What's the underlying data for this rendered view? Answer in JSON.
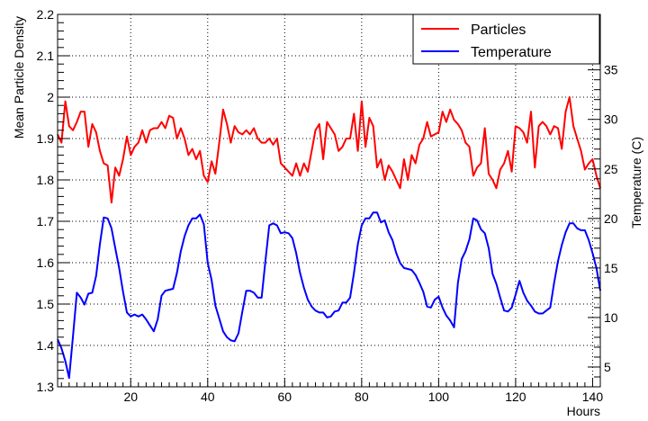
{
  "chart_data": {
    "type": "line",
    "xlabel": "Hours",
    "ylabel": "Mean Particle Density",
    "y2label": "Temperature (C)",
    "xlim": [
      1,
      142
    ],
    "ylim": [
      1.3,
      2.2
    ],
    "y2lim": [
      3.0,
      40.6
    ],
    "x_ticks": [
      20,
      40,
      60,
      80,
      100,
      120,
      140
    ],
    "y_ticks": [
      "1.3",
      "1.4",
      "1.5",
      "1.6",
      "1.7",
      "1.8",
      "1.9",
      "2",
      "2.1",
      "2.2"
    ],
    "y2_ticks": [
      5,
      10,
      15,
      20,
      25,
      30,
      35
    ],
    "grid": true,
    "legend_position": "top-right",
    "series": [
      {
        "name": "Particles",
        "color": "#ff0000",
        "axis": "left",
        "x": [
          1,
          2,
          3,
          4,
          5,
          6,
          7,
          8,
          9,
          10,
          11,
          12,
          13,
          14,
          15,
          16,
          17,
          18,
          19,
          20,
          21,
          22,
          23,
          24,
          25,
          26,
          27,
          28,
          29,
          30,
          31,
          32,
          33,
          34,
          35,
          36,
          37,
          38,
          39,
          40,
          41,
          42,
          43,
          44,
          45,
          46,
          47,
          48,
          49,
          50,
          51,
          52,
          53,
          54,
          55,
          56,
          57,
          58,
          59,
          60,
          61,
          62,
          63,
          64,
          65,
          66,
          67,
          68,
          69,
          70,
          71,
          72,
          73,
          74,
          75,
          76,
          77,
          78,
          79,
          80,
          81,
          82,
          83,
          84,
          85,
          86,
          87,
          88,
          89,
          90,
          91,
          92,
          93,
          94,
          95,
          96,
          97,
          98,
          99,
          100,
          101,
          102,
          103,
          104,
          105,
          106,
          107,
          108,
          109,
          110,
          111,
          112,
          113,
          114,
          115,
          116,
          117,
          118,
          119,
          120,
          121,
          122,
          123,
          124,
          125,
          126,
          127,
          128,
          129,
          130,
          131,
          132,
          133,
          134,
          135,
          136,
          137,
          138,
          139,
          140,
          141,
          142
        ],
        "values": [
          1.91,
          1.89,
          1.99,
          1.93,
          1.92,
          1.94,
          1.965,
          1.965,
          1.88,
          1.935,
          1.915,
          1.87,
          1.84,
          1.835,
          1.745,
          1.83,
          1.81,
          1.85,
          1.905,
          1.86,
          1.88,
          1.89,
          1.92,
          1.89,
          1.92,
          1.925,
          1.925,
          1.94,
          1.925,
          1.955,
          1.95,
          1.9,
          1.925,
          1.9,
          1.86,
          1.875,
          1.85,
          1.87,
          1.81,
          1.795,
          1.845,
          1.815,
          1.89,
          1.97,
          1.935,
          1.89,
          1.93,
          1.915,
          1.91,
          1.92,
          1.91,
          1.925,
          1.9,
          1.89,
          1.89,
          1.9,
          1.885,
          1.9,
          1.84,
          1.83,
          1.82,
          1.81,
          1.84,
          1.81,
          1.84,
          1.82,
          1.87,
          1.92,
          1.935,
          1.85,
          1.94,
          1.925,
          1.91,
          1.87,
          1.88,
          1.9,
          1.9,
          1.96,
          1.87,
          1.99,
          1.88,
          1.95,
          1.93,
          1.83,
          1.85,
          1.8,
          1.835,
          1.82,
          1.8,
          1.78,
          1.85,
          1.8,
          1.86,
          1.84,
          1.885,
          1.9,
          1.94,
          1.905,
          1.91,
          1.915,
          1.965,
          1.94,
          1.97,
          1.945,
          1.935,
          1.92,
          1.89,
          1.88,
          1.81,
          1.83,
          1.84,
          1.925,
          1.815,
          1.8,
          1.78,
          1.825,
          1.84,
          1.87,
          1.82,
          1.93,
          1.925,
          1.915,
          1.89,
          1.965,
          1.83,
          1.93,
          1.94,
          1.93,
          1.91,
          1.93,
          1.925,
          1.875,
          1.965,
          2.0,
          1.93,
          1.9,
          1.87,
          1.825,
          1.84,
          1.85,
          1.81,
          1.78
        ]
      },
      {
        "name": "Temperature",
        "color": "#0000ff",
        "axis": "right",
        "x": [
          1,
          2,
          3,
          4,
          5,
          6,
          7,
          8,
          9,
          10,
          11,
          12,
          13,
          14,
          15,
          16,
          17,
          18,
          19,
          20,
          21,
          22,
          23,
          24,
          25,
          26,
          27,
          28,
          29,
          30,
          31,
          32,
          33,
          34,
          35,
          36,
          37,
          38,
          39,
          40,
          41,
          42,
          43,
          44,
          45,
          46,
          47,
          48,
          49,
          50,
          51,
          52,
          53,
          54,
          55,
          56,
          57,
          58,
          59,
          60,
          61,
          62,
          63,
          64,
          65,
          66,
          67,
          68,
          69,
          70,
          71,
          72,
          73,
          74,
          75,
          76,
          77,
          78,
          79,
          80,
          81,
          82,
          83,
          84,
          85,
          86,
          87,
          88,
          89,
          90,
          91,
          92,
          93,
          94,
          95,
          96,
          97,
          98,
          99,
          100,
          101,
          102,
          103,
          104,
          105,
          106,
          107,
          108,
          109,
          110,
          111,
          112,
          113,
          114,
          115,
          116,
          117,
          118,
          119,
          120,
          121,
          122,
          123,
          124,
          125,
          126,
          127,
          128,
          129,
          130,
          131,
          132,
          133,
          134,
          135,
          136,
          137,
          138,
          139,
          140,
          141,
          142
        ],
        "values": [
          7.8,
          6.9,
          5.6,
          3.9,
          8.1,
          12.5,
          12.0,
          11.3,
          12.4,
          12.5,
          14.2,
          17.4,
          20.1,
          20.0,
          19.0,
          17.0,
          15.0,
          12.6,
          10.5,
          10.1,
          10.3,
          10.1,
          10.3,
          9.8,
          9.2,
          8.6,
          9.8,
          12.2,
          12.7,
          12.8,
          12.9,
          14.5,
          16.7,
          18.2,
          19.3,
          20.0,
          20.0,
          20.4,
          19.4,
          15.5,
          13.8,
          11.2,
          9.9,
          8.6,
          8.0,
          7.7,
          7.6,
          8.4,
          10.6,
          12.7,
          12.7,
          12.5,
          12.0,
          12.0,
          15.7,
          19.3,
          19.5,
          19.3,
          18.5,
          18.6,
          18.5,
          18.0,
          16.5,
          14.5,
          13.0,
          11.8,
          11.1,
          10.7,
          10.5,
          10.5,
          10.0,
          10.1,
          10.6,
          10.7,
          11.5,
          11.5,
          12.0,
          14.5,
          17.4,
          19.3,
          20.0,
          20.0,
          20.6,
          20.6,
          19.6,
          19.8,
          18.6,
          17.8,
          16.5,
          15.5,
          15.0,
          14.9,
          14.8,
          14.3,
          13.5,
          12.6,
          11.1,
          11.0,
          11.8,
          12.1,
          11.0,
          10.2,
          9.7,
          9.0,
          13.5,
          15.9,
          16.7,
          17.9,
          20.0,
          19.8,
          18.9,
          18.5,
          17.0,
          14.4,
          13.4,
          12.0,
          10.7,
          10.6,
          11.0,
          12.3,
          13.7,
          12.5,
          11.7,
          11.2,
          10.6,
          10.4,
          10.4,
          10.7,
          11.0,
          13.5,
          15.7,
          17.3,
          18.6,
          19.5,
          19.5,
          19.0,
          18.8,
          18.8,
          17.8,
          16.5,
          15.0,
          12.7
        ]
      }
    ]
  }
}
